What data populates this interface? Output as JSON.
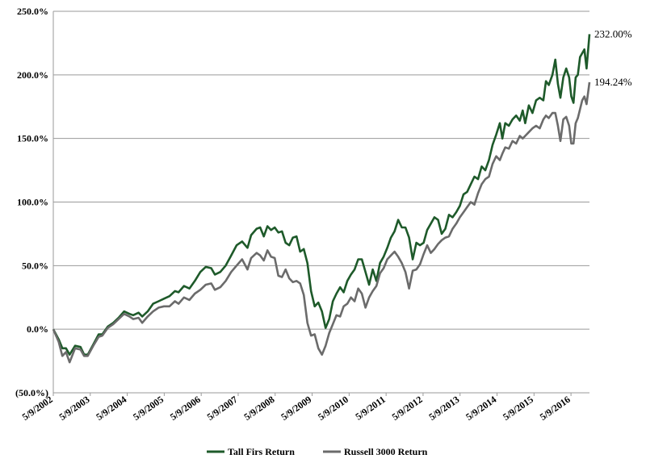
{
  "chart_data": {
    "type": "line",
    "title": "",
    "xlabel": "",
    "ylabel": "",
    "ylim": [
      -50,
      250
    ],
    "yticks": [
      -50,
      0,
      50,
      100,
      150,
      200,
      250
    ],
    "ytick_labels": [
      "(50.0%)",
      "0.0%",
      "50.0%",
      "100.0%",
      "150.0%",
      "200.0%",
      "250.0%"
    ],
    "xlim": [
      2002.35,
      2016.85
    ],
    "xtick_positions": [
      2002.35,
      2003.35,
      2004.35,
      2005.35,
      2006.35,
      2007.35,
      2008.35,
      2009.35,
      2010.35,
      2011.35,
      2012.35,
      2013.35,
      2014.35,
      2015.35,
      2016.35
    ],
    "xtick_labels": [
      "5/9/2002",
      "5/9/2003",
      "5/9/2004",
      "5/9/2005",
      "5/9/2006",
      "5/9/2007",
      "5/9/2008",
      "5/9/2009",
      "5/9/2010",
      "5/9/2011",
      "5/9/2012",
      "5/9/2013",
      "5/9/2014",
      "5/9/2015",
      "5/9/2016"
    ],
    "grid": "horizontal",
    "legend_position": "bottom",
    "series": [
      {
        "name": "Tall Firs Return",
        "color": "#1e5a2a",
        "end_label": "232.00%",
        "points": [
          [
            2002.35,
            0
          ],
          [
            2002.5,
            -8
          ],
          [
            2002.6,
            -15
          ],
          [
            2002.7,
            -15
          ],
          [
            2002.8,
            -20
          ],
          [
            2002.95,
            -13
          ],
          [
            2003.1,
            -14
          ],
          [
            2003.2,
            -20
          ],
          [
            2003.3,
            -20
          ],
          [
            2003.45,
            -12
          ],
          [
            2003.6,
            -4
          ],
          [
            2003.7,
            -4
          ],
          [
            2003.85,
            2
          ],
          [
            2004.0,
            5
          ],
          [
            2004.15,
            9
          ],
          [
            2004.3,
            14
          ],
          [
            2004.45,
            12
          ],
          [
            2004.55,
            11
          ],
          [
            2004.7,
            13
          ],
          [
            2004.8,
            10
          ],
          [
            2004.95,
            14
          ],
          [
            2005.1,
            20
          ],
          [
            2005.25,
            22
          ],
          [
            2005.4,
            24
          ],
          [
            2005.55,
            26
          ],
          [
            2005.7,
            30
          ],
          [
            2005.8,
            29
          ],
          [
            2005.95,
            34
          ],
          [
            2006.1,
            32
          ],
          [
            2006.25,
            38
          ],
          [
            2006.4,
            45
          ],
          [
            2006.55,
            49
          ],
          [
            2006.7,
            48
          ],
          [
            2006.8,
            43
          ],
          [
            2006.95,
            45
          ],
          [
            2007.1,
            50
          ],
          [
            2007.25,
            58
          ],
          [
            2007.4,
            66
          ],
          [
            2007.55,
            69
          ],
          [
            2007.7,
            64
          ],
          [
            2007.8,
            74
          ],
          [
            2007.95,
            79
          ],
          [
            2008.05,
            80
          ],
          [
            2008.15,
            73
          ],
          [
            2008.25,
            81
          ],
          [
            2008.35,
            78
          ],
          [
            2008.45,
            80
          ],
          [
            2008.55,
            76
          ],
          [
            2008.65,
            77
          ],
          [
            2008.75,
            68
          ],
          [
            2008.85,
            66
          ],
          [
            2008.95,
            72
          ],
          [
            2009.05,
            73
          ],
          [
            2009.15,
            61
          ],
          [
            2009.25,
            63
          ],
          [
            2009.35,
            52
          ],
          [
            2009.45,
            30
          ],
          [
            2009.55,
            18
          ],
          [
            2009.65,
            21
          ],
          [
            2009.75,
            14
          ],
          [
            2009.85,
            1
          ],
          [
            2009.95,
            8
          ],
          [
            2010.05,
            22
          ],
          [
            2010.15,
            28
          ],
          [
            2010.25,
            33
          ],
          [
            2010.35,
            29
          ],
          [
            2010.45,
            38
          ],
          [
            2010.55,
            43
          ],
          [
            2010.65,
            47
          ],
          [
            2010.75,
            55
          ],
          [
            2010.85,
            55
          ],
          [
            2010.95,
            45
          ],
          [
            2011.05,
            35
          ],
          [
            2011.15,
            47
          ],
          [
            2011.25,
            38
          ],
          [
            2011.35,
            52
          ],
          [
            2011.45,
            57
          ],
          [
            2011.55,
            64
          ],
          [
            2011.65,
            72
          ],
          [
            2011.75,
            77
          ],
          [
            2011.85,
            86
          ],
          [
            2011.95,
            80
          ],
          [
            2012.05,
            80
          ],
          [
            2012.15,
            72
          ],
          [
            2012.25,
            55
          ],
          [
            2012.35,
            68
          ],
          [
            2012.45,
            66
          ],
          [
            2012.55,
            68
          ],
          [
            2012.65,
            78
          ],
          [
            2012.75,
            83
          ],
          [
            2012.85,
            88
          ],
          [
            2012.95,
            86
          ],
          [
            2013.05,
            75
          ],
          [
            2013.15,
            79
          ],
          [
            2013.25,
            90
          ],
          [
            2013.35,
            88
          ],
          [
            2013.45,
            92
          ],
          [
            2013.55,
            97
          ],
          [
            2013.65,
            106
          ],
          [
            2013.75,
            108
          ],
          [
            2013.85,
            114
          ],
          [
            2013.95,
            120
          ],
          [
            2014.05,
            118
          ],
          [
            2014.15,
            128
          ],
          [
            2014.25,
            125
          ],
          [
            2014.35,
            133
          ],
          [
            2014.45,
            145
          ],
          [
            2014.55,
            153
          ],
          [
            2014.65,
            162
          ],
          [
            2014.72,
            150
          ],
          [
            2014.8,
            162
          ],
          [
            2014.9,
            160
          ],
          [
            2015.0,
            165
          ],
          [
            2015.1,
            168
          ],
          [
            2015.2,
            164
          ],
          [
            2015.28,
            172
          ],
          [
            2015.35,
            162
          ],
          [
            2015.45,
            176
          ],
          [
            2015.55,
            170
          ],
          [
            2015.65,
            180
          ],
          [
            2015.75,
            182
          ],
          [
            2015.85,
            180
          ],
          [
            2015.92,
            195
          ],
          [
            2016.0,
            192
          ],
          [
            2016.1,
            200
          ],
          [
            2016.18,
            212
          ],
          [
            2016.25,
            193
          ],
          [
            2016.32,
            182
          ],
          [
            2016.4,
            198
          ],
          [
            2016.48,
            205
          ],
          [
            2016.56,
            198
          ],
          [
            2016.62,
            183
          ],
          [
            2016.68,
            178
          ],
          [
            2016.74,
            198
          ],
          [
            2016.8,
            200
          ],
          [
            2016.86,
            214
          ],
          [
            2016.92,
            217
          ],
          [
            2016.98,
            220
          ],
          [
            2017.04,
            205
          ],
          [
            2017.12,
            232
          ]
        ]
      },
      {
        "name": "Russell 3000 Return",
        "color": "#6b6b6b",
        "end_label": "194.24%",
        "points": [
          [
            2002.35,
            0
          ],
          [
            2002.5,
            -10
          ],
          [
            2002.6,
            -21
          ],
          [
            2002.7,
            -18
          ],
          [
            2002.8,
            -26
          ],
          [
            2002.95,
            -15
          ],
          [
            2003.1,
            -16
          ],
          [
            2003.2,
            -21
          ],
          [
            2003.3,
            -21
          ],
          [
            2003.45,
            -13
          ],
          [
            2003.6,
            -6
          ],
          [
            2003.7,
            -5
          ],
          [
            2003.85,
            1
          ],
          [
            2004.0,
            4
          ],
          [
            2004.15,
            8
          ],
          [
            2004.3,
            12
          ],
          [
            2004.45,
            10
          ],
          [
            2004.55,
            8
          ],
          [
            2004.7,
            9
          ],
          [
            2004.8,
            5
          ],
          [
            2004.95,
            10
          ],
          [
            2005.1,
            14
          ],
          [
            2005.25,
            17
          ],
          [
            2005.4,
            18
          ],
          [
            2005.55,
            18
          ],
          [
            2005.7,
            22
          ],
          [
            2005.8,
            20
          ],
          [
            2005.95,
            25
          ],
          [
            2006.1,
            23
          ],
          [
            2006.25,
            28
          ],
          [
            2006.4,
            31
          ],
          [
            2006.55,
            35
          ],
          [
            2006.7,
            36
          ],
          [
            2006.8,
            31
          ],
          [
            2006.95,
            33
          ],
          [
            2007.1,
            38
          ],
          [
            2007.25,
            45
          ],
          [
            2007.4,
            50
          ],
          [
            2007.55,
            55
          ],
          [
            2007.7,
            47
          ],
          [
            2007.8,
            56
          ],
          [
            2007.95,
            60
          ],
          [
            2008.05,
            58
          ],
          [
            2008.15,
            54
          ],
          [
            2008.25,
            62
          ],
          [
            2008.35,
            57
          ],
          [
            2008.45,
            56
          ],
          [
            2008.55,
            42
          ],
          [
            2008.65,
            41
          ],
          [
            2008.75,
            47
          ],
          [
            2008.85,
            40
          ],
          [
            2008.95,
            37
          ],
          [
            2009.05,
            38
          ],
          [
            2009.15,
            36
          ],
          [
            2009.25,
            27
          ],
          [
            2009.35,
            5
          ],
          [
            2009.45,
            -5
          ],
          [
            2009.55,
            -4
          ],
          [
            2009.65,
            -15
          ],
          [
            2009.75,
            -20
          ],
          [
            2009.85,
            -13
          ],
          [
            2009.95,
            -3
          ],
          [
            2010.05,
            4
          ],
          [
            2010.15,
            11
          ],
          [
            2010.25,
            10
          ],
          [
            2010.35,
            18
          ],
          [
            2010.45,
            20
          ],
          [
            2010.55,
            25
          ],
          [
            2010.65,
            22
          ],
          [
            2010.75,
            32
          ],
          [
            2010.85,
            28
          ],
          [
            2010.95,
            17
          ],
          [
            2011.05,
            25
          ],
          [
            2011.15,
            30
          ],
          [
            2011.25,
            34
          ],
          [
            2011.35,
            44
          ],
          [
            2011.45,
            48
          ],
          [
            2011.55,
            55
          ],
          [
            2011.65,
            58
          ],
          [
            2011.75,
            61
          ],
          [
            2011.85,
            57
          ],
          [
            2011.95,
            52
          ],
          [
            2012.05,
            45
          ],
          [
            2012.15,
            32
          ],
          [
            2012.25,
            46
          ],
          [
            2012.35,
            47
          ],
          [
            2012.45,
            51
          ],
          [
            2012.55,
            59
          ],
          [
            2012.65,
            66
          ],
          [
            2012.75,
            60
          ],
          [
            2012.85,
            63
          ],
          [
            2012.95,
            67
          ],
          [
            2013.05,
            70
          ],
          [
            2013.15,
            72
          ],
          [
            2013.25,
            73
          ],
          [
            2013.35,
            79
          ],
          [
            2013.45,
            83
          ],
          [
            2013.55,
            88
          ],
          [
            2013.65,
            92
          ],
          [
            2013.75,
            96
          ],
          [
            2013.85,
            100
          ],
          [
            2013.95,
            98
          ],
          [
            2014.05,
            107
          ],
          [
            2014.15,
            114
          ],
          [
            2014.25,
            118
          ],
          [
            2014.35,
            120
          ],
          [
            2014.45,
            130
          ],
          [
            2014.55,
            136
          ],
          [
            2014.65,
            133
          ],
          [
            2014.72,
            138
          ],
          [
            2014.8,
            143
          ],
          [
            2014.9,
            142
          ],
          [
            2015.0,
            148
          ],
          [
            2015.1,
            146
          ],
          [
            2015.2,
            152
          ],
          [
            2015.28,
            150
          ],
          [
            2015.35,
            152
          ],
          [
            2015.45,
            155
          ],
          [
            2015.55,
            158
          ],
          [
            2015.65,
            160
          ],
          [
            2015.75,
            158
          ],
          [
            2015.85,
            165
          ],
          [
            2015.92,
            168
          ],
          [
            2016.0,
            166
          ],
          [
            2016.1,
            170
          ],
          [
            2016.18,
            170
          ],
          [
            2016.25,
            160
          ],
          [
            2016.32,
            148
          ],
          [
            2016.4,
            165
          ],
          [
            2016.48,
            167
          ],
          [
            2016.56,
            160
          ],
          [
            2016.62,
            146
          ],
          [
            2016.68,
            146
          ],
          [
            2016.74,
            162
          ],
          [
            2016.8,
            166
          ],
          [
            2016.86,
            173
          ],
          [
            2016.92,
            180
          ],
          [
            2016.98,
            183
          ],
          [
            2017.04,
            177
          ],
          [
            2017.12,
            194.24
          ]
        ]
      }
    ]
  }
}
